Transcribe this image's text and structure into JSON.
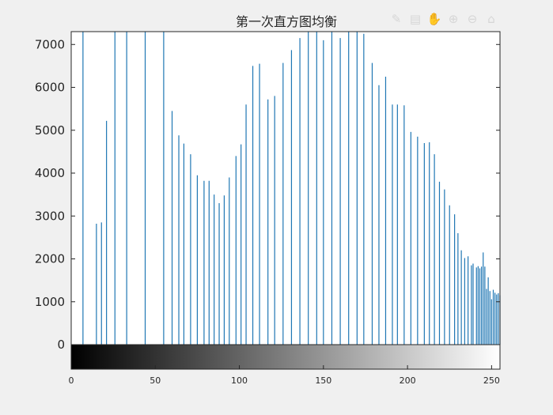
{
  "figure": {
    "title": "第一次直方图均衡",
    "background": "#f0f0f0",
    "axes_background": "#ffffff"
  },
  "toolbar": {
    "icons": [
      "brush-icon",
      "legend-icon",
      "pan-icon",
      "zoom-in-icon",
      "zoom-out-icon",
      "home-icon"
    ]
  },
  "chart_data": {
    "type": "bar",
    "title": "第一次直方图均衡",
    "xlabel": "",
    "ylabel": "",
    "xlim": [
      0,
      255
    ],
    "ylim": [
      0,
      7300
    ],
    "colorbar_ylim": [
      -600,
      0
    ],
    "bar_color": "#1f77b4",
    "grid": false,
    "xticks": [
      0,
      50,
      100,
      150,
      200,
      250
    ],
    "yticks": [
      0,
      1000,
      2000,
      3000,
      4000,
      5000,
      6000,
      7000
    ],
    "colorbar": {
      "type": "grayscale",
      "from": "#000000",
      "to": "#ffffff",
      "range": [
        0,
        255
      ]
    },
    "x": [
      7,
      15,
      18,
      21,
      26,
      33,
      44,
      55,
      60,
      64,
      67,
      71,
      75,
      79,
      82,
      85,
      88,
      91,
      94,
      98,
      101,
      104,
      108,
      112,
      117,
      121,
      126,
      131,
      136,
      141,
      146,
      150,
      155,
      160,
      165,
      170,
      174,
      179,
      183,
      187,
      191,
      194,
      198,
      202,
      206,
      210,
      213,
      216,
      219,
      222,
      225,
      228,
      230,
      232,
      234,
      236,
      238,
      239,
      241,
      242,
      243,
      244,
      245,
      246,
      247,
      248,
      249,
      250,
      251,
      252,
      253,
      254,
      255
    ],
    "values": [
      7300,
      2820,
      2850,
      5220,
      7300,
      7300,
      7300,
      7300,
      5450,
      4880,
      4690,
      4440,
      3950,
      3820,
      3820,
      3500,
      3300,
      3480,
      3900,
      4400,
      4670,
      5600,
      6500,
      6550,
      5720,
      5800,
      6570,
      6870,
      7150,
      7300,
      7300,
      7100,
      7300,
      7150,
      7300,
      7300,
      7250,
      6570,
      6050,
      6250,
      5600,
      5600,
      5580,
      4960,
      4850,
      4700,
      4720,
      4440,
      3800,
      3620,
      3250,
      3040,
      2600,
      2200,
      2020,
      2060,
      1850,
      1890,
      1800,
      1830,
      1780,
      1820,
      2150,
      1820,
      1300,
      1570,
      1250,
      1060,
      1280,
      1210,
      1170,
      1200,
      1150
    ]
  }
}
